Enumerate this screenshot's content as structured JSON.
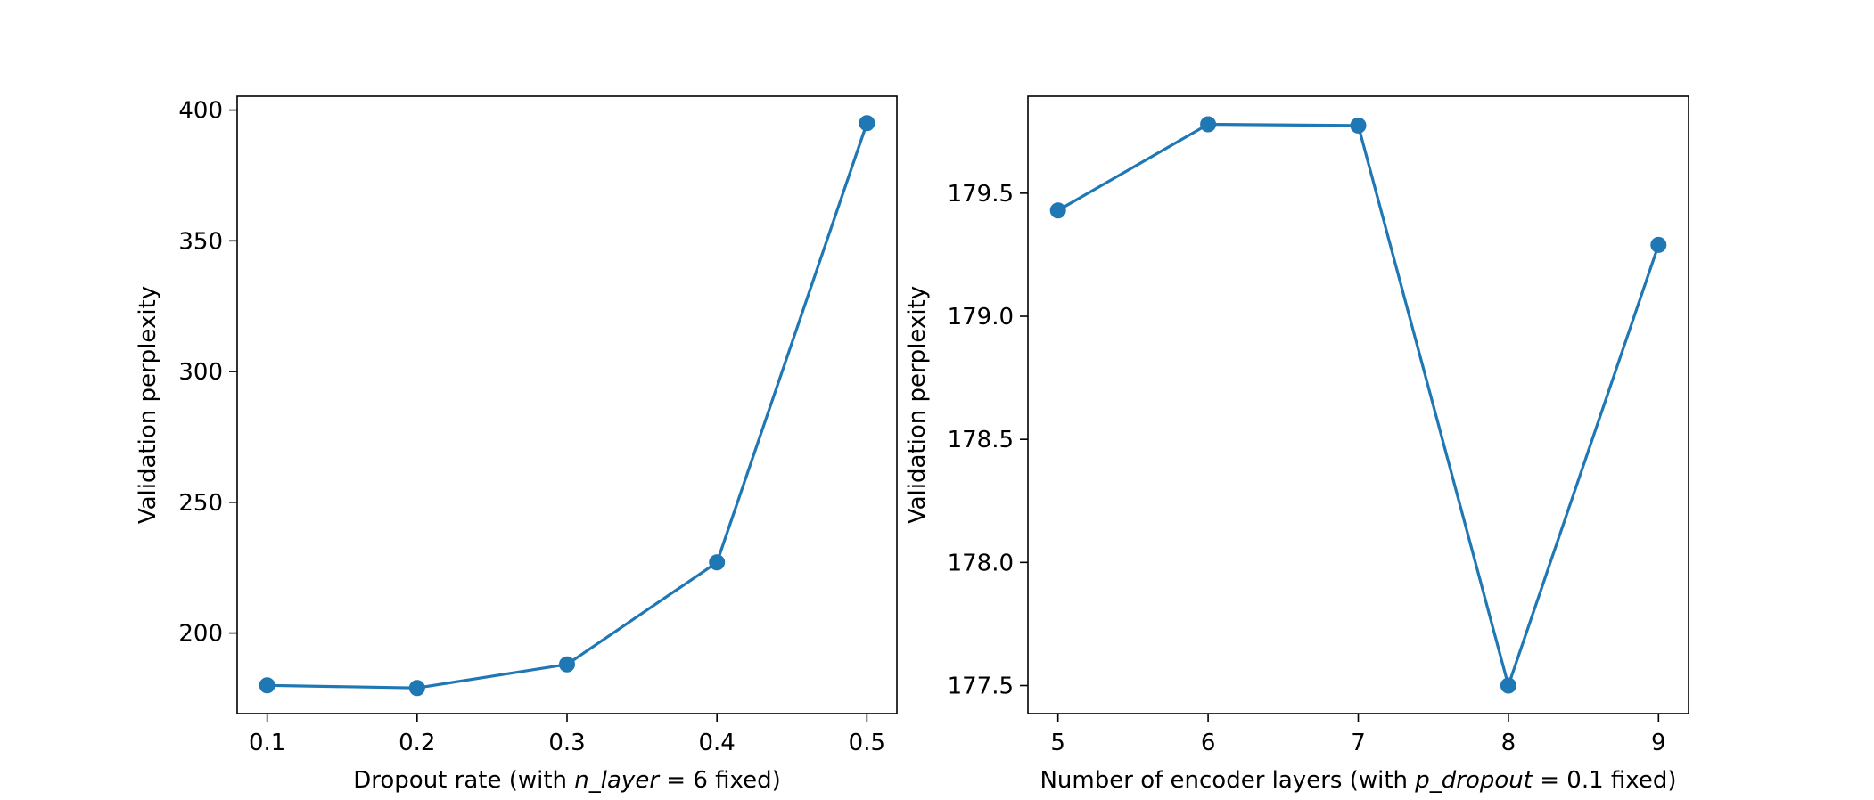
{
  "chart_data": [
    {
      "type": "line",
      "x": [
        0.1,
        0.2,
        0.3,
        0.4,
        0.5
      ],
      "series": [
        {
          "values": [
            180.0,
            179.0,
            188.0,
            227.0,
            395.0
          ],
          "color": "#1f77b4",
          "marker": "circle"
        }
      ],
      "xlabel_prefix": "Dropout rate (with ",
      "xlabel_var": "n_layer",
      "xlabel_suffix": " = 6 fixed)",
      "ylabel": "Validation perplexity",
      "xticks": [
        "0.1",
        "0.2",
        "0.3",
        "0.4",
        "0.5"
      ],
      "xtick_values": [
        0.1,
        0.2,
        0.3,
        0.4,
        0.5
      ],
      "yticks": [
        "200",
        "250",
        "300",
        "350",
        "400"
      ],
      "ytick_values": [
        200,
        250,
        300,
        350,
        400
      ],
      "xlim": [
        0.08,
        0.52
      ],
      "ylim": [
        169.2,
        405.3
      ],
      "grid": false
    },
    {
      "type": "line",
      "x": [
        5,
        6,
        7,
        8,
        9
      ],
      "series": [
        {
          "values": [
            179.43,
            179.78,
            179.775,
            177.5,
            179.29
          ],
          "color": "#1f77b4",
          "marker": "circle"
        }
      ],
      "xlabel_prefix": "Number of encoder layers (with ",
      "xlabel_var": "p_dropout",
      "xlabel_suffix": " = 0.1 fixed)",
      "ylabel": "Validation perplexity",
      "xticks": [
        "5",
        "6",
        "7",
        "8",
        "9"
      ],
      "xtick_values": [
        5,
        6,
        7,
        8,
        9
      ],
      "yticks": [
        "177.5",
        "178.0",
        "178.5",
        "179.0",
        "179.5"
      ],
      "ytick_values": [
        177.5,
        178.0,
        178.5,
        179.0,
        179.5
      ],
      "xlim": [
        4.8,
        9.2
      ],
      "ylim": [
        177.386,
        179.894
      ],
      "grid": false
    }
  ]
}
